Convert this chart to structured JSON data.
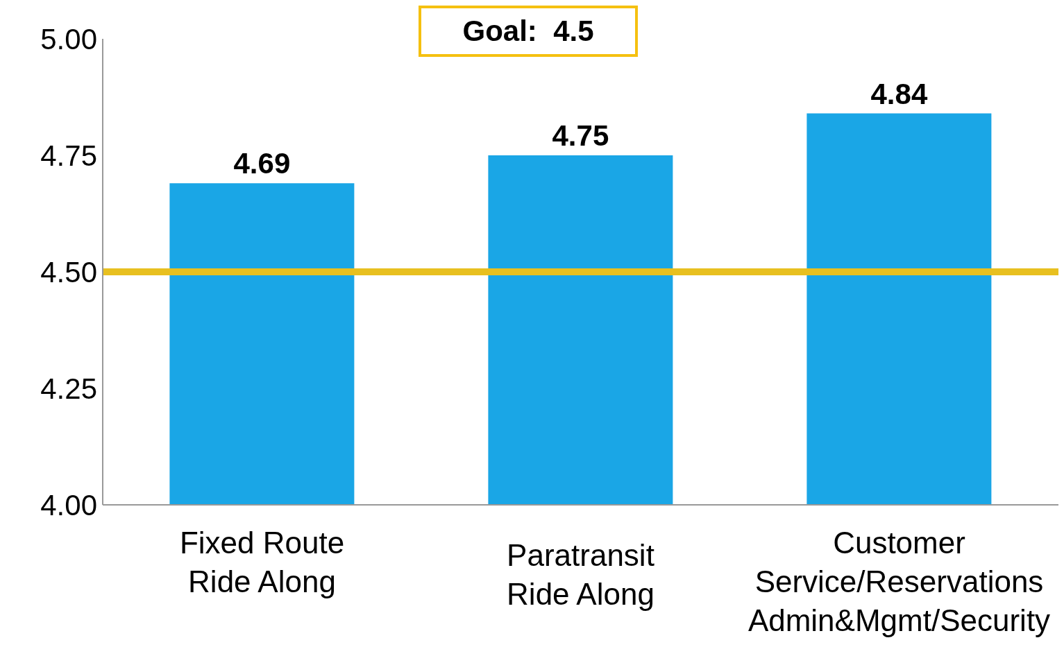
{
  "chart_data": {
    "type": "bar",
    "categories": [
      "Fixed Route\nRide Along",
      "Paratransit\nRide Along",
      "Customer\nService/Reservations\nAdmin&Mgmt/Security"
    ],
    "values": [
      4.69,
      4.75,
      4.84
    ],
    "color": "#1aa6e6",
    "data_labels": true,
    "ylim": [
      4,
      5
    ],
    "yticks": [
      {
        "value": 4,
        "label": "4.00"
      },
      {
        "value": 4.25,
        "label": "4.25"
      },
      {
        "value": 4.5,
        "label": "4.50"
      },
      {
        "value": 4.75,
        "label": "4.75"
      },
      {
        "value": 5,
        "label": "5.00"
      }
    ],
    "grid": false,
    "legend": false,
    "ref_lines": [
      {
        "axis": "y",
        "value": 4.5,
        "color": "#e8c020"
      }
    ],
    "annotations": [
      "Goal:  4.5"
    ]
  }
}
